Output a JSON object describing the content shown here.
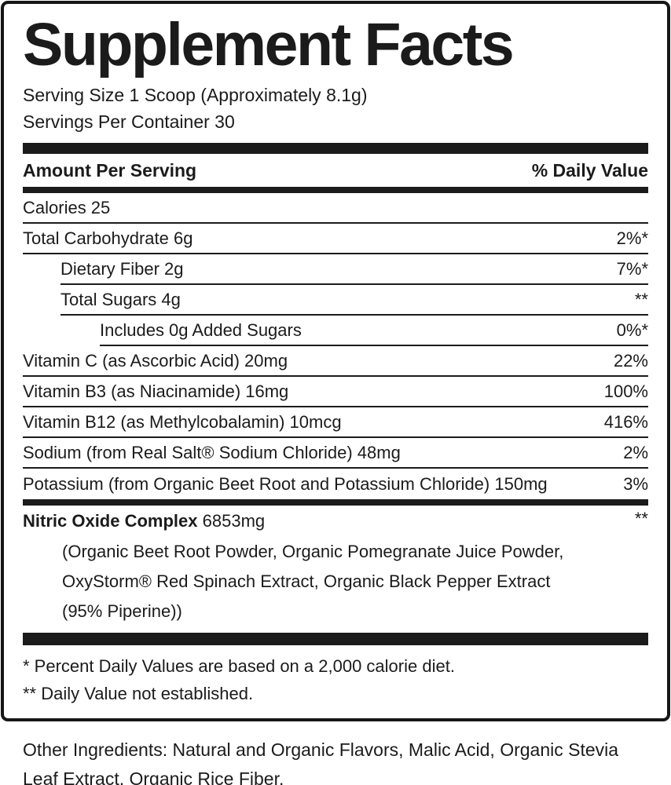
{
  "label": {
    "title": "Supplement Facts",
    "serving_size": "Serving Size 1 Scoop (Approximately 8.1g)",
    "servings_per_container": "Servings Per Container 30",
    "column_header": {
      "left": "Amount Per Serving",
      "right": "% Daily Value"
    },
    "rows": [
      {
        "name": "Calories 25",
        "value": "",
        "indent": 0
      },
      {
        "name": "Total Carbohydrate 6g",
        "value": "2%*",
        "indent": 0
      },
      {
        "name": "Dietary Fiber 2g",
        "value": "7%*",
        "indent": 1
      },
      {
        "name": "Total Sugars 4g",
        "value": "**",
        "indent": 1
      },
      {
        "name": "Includes 0g Added Sugars",
        "value": "0%*",
        "indent": 2
      },
      {
        "name": "Vitamin C (as Ascorbic Acid) 20mg",
        "value": "22%",
        "indent": 0
      },
      {
        "name": "Vitamin B3 (as Niacinamide) 16mg",
        "value": "100%",
        "indent": 0
      },
      {
        "name": "Vitamin B12 (as Methylcobalamin) 10mcg",
        "value": "416%",
        "indent": 0
      },
      {
        "name": "Sodium (from Real Salt® Sodium Chloride) 48mg",
        "value": "2%",
        "indent": 0
      },
      {
        "name": "Potassium (from Organic Beet Root and Potassium Chloride) 150mg",
        "value": "3%",
        "indent": 0
      }
    ],
    "complex": {
      "name": "Nitric Oxide Complex",
      "amount": "6853mg",
      "value": "**",
      "description_lines": [
        "(Organic Beet Root Powder, Organic Pomegranate Juice Powder,",
        "OxyStorm® Red Spinach Extract, Organic Black Pepper Extract",
        "(95% Piperine))"
      ]
    },
    "footnotes": [
      "* Percent Daily Values are based on a 2,000 calorie diet.",
      "** Daily Value not established."
    ],
    "colors": {
      "ink": "#1b1b1b"
    }
  },
  "other_ingredients": "Other Ingredients: Natural and Organic Flavors, Malic Acid, Organic Stevia Leaf Extract, Organic Rice Fiber."
}
